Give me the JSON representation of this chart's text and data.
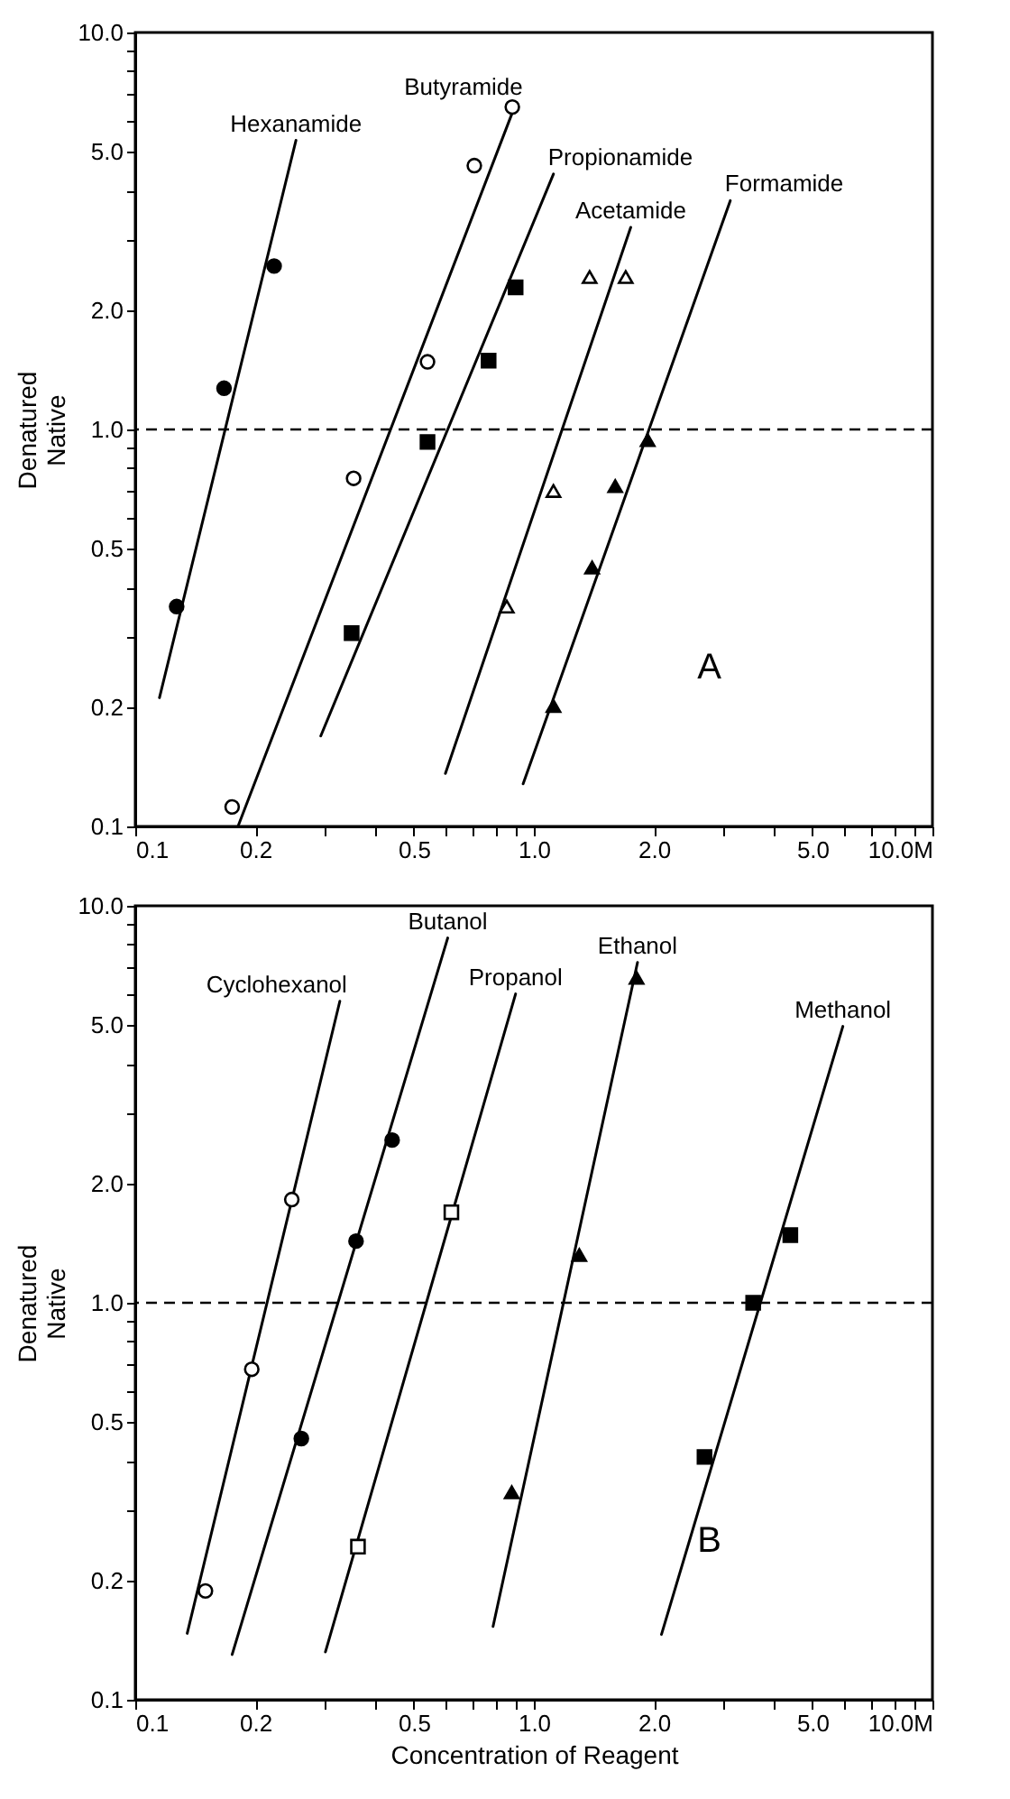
{
  "chart_data": [
    {
      "type": "scatter",
      "ylabel": "Denatured\nNative",
      "log": "xy",
      "xlim": [
        0.1,
        10
      ],
      "ylim": [
        0.1,
        10
      ],
      "xticks": [
        0.1,
        0.2,
        {
          "value": 0.3,
          "label": null
        },
        {
          "value": 0.4,
          "label": null
        },
        0.5,
        {
          "value": 0.6,
          "label": null
        },
        {
          "value": 0.7,
          "label": null
        },
        {
          "value": 0.8,
          "label": null
        },
        {
          "value": 0.9,
          "label": null
        },
        {
          "value": 1,
          "label": "1.0"
        },
        {
          "value": 2,
          "label": "2.0"
        },
        {
          "value": 3,
          "label": null
        },
        {
          "value": 4,
          "label": null
        },
        {
          "value": 5,
          "label": "5.0"
        },
        {
          "value": 6,
          "label": null
        },
        {
          "value": 7,
          "label": null
        },
        {
          "value": 8,
          "label": null
        },
        {
          "value": 9,
          "label": null
        },
        {
          "value": 10,
          "label": "10.0M"
        }
      ],
      "yticks": [
        0.1,
        0.2,
        {
          "value": 0.3,
          "label": null
        },
        {
          "value": 0.4,
          "label": null
        },
        0.5,
        {
          "value": 0.6,
          "label": null
        },
        {
          "value": 0.7,
          "label": null
        },
        {
          "value": 0.8,
          "label": null
        },
        {
          "value": 0.9,
          "label": null
        },
        {
          "value": 1,
          "label": "1.0"
        },
        {
          "value": 2,
          "label": "2.0"
        },
        {
          "value": 3,
          "label": null
        },
        {
          "value": 4,
          "label": null
        },
        {
          "value": 5,
          "label": "5.0"
        },
        {
          "value": 6,
          "label": null
        },
        {
          "value": 7,
          "label": null
        },
        {
          "value": 8,
          "label": null
        },
        {
          "value": 9,
          "label": null
        },
        {
          "value": 10,
          "label": "10.0"
        }
      ],
      "ref_lines": [
        {
          "axis": "y",
          "value": 1,
          "line_style": "dashed"
        }
      ],
      "annotations": [
        "A"
      ],
      "series": [
        {
          "name": "Hexanamide",
          "type": "line",
          "x": [
            0.115,
            0.253
          ],
          "values": [
            0.211,
            5.35
          ],
          "color": "#000000",
          "marker": "none"
        },
        {
          "x": [
            0.127,
            0.167,
            0.223
          ],
          "values": [
            0.358,
            1.27,
            2.58
          ],
          "color": "#000000",
          "marker": "circle"
        },
        {
          "name": "Butyramide",
          "type": "line",
          "x": [
            0.181,
            0.9
          ],
          "values": [
            0.1,
            6.6
          ],
          "color": "#000000",
          "marker": "none"
        },
        {
          "x": [
            0.175,
            0.353,
            0.541,
            0.709,
            0.883
          ],
          "values": [
            0.112,
            0.753,
            1.48,
            4.62,
            6.49
          ],
          "color": "#ffffff",
          "marker": "circle"
        },
        {
          "name": "Propionamide",
          "type": "line",
          "x": [
            0.292,
            1.12
          ],
          "values": [
            0.169,
            4.4
          ],
          "color": "#000000",
          "marker": "none"
        },
        {
          "x": [
            0.349,
            0.541,
            0.77,
            0.9
          ],
          "values": [
            0.307,
            0.93,
            1.49,
            2.28
          ],
          "color": "#000000",
          "marker": "square"
        },
        {
          "name": "Acetamide",
          "type": "line",
          "x": [
            0.6,
            1.75
          ],
          "values": [
            0.136,
            3.23
          ],
          "color": "#000000",
          "marker": "none"
        },
        {
          "x": [
            0.855,
            1.12,
            1.38,
            1.7
          ],
          "values": [
            0.358,
            0.7,
            2.42,
            2.42
          ],
          "color": "#ffffff",
          "marker": "triangle"
        },
        {
          "name": "Formamide",
          "type": "line",
          "x": [
            0.94,
            3.11
          ],
          "values": [
            0.128,
            3.77
          ],
          "color": "#000000",
          "marker": "none"
        },
        {
          "x": [
            1.12,
            1.4,
            1.6,
            1.93
          ],
          "values": [
            0.201,
            0.449,
            0.72,
            0.94
          ],
          "color": "#000000",
          "marker": "triangle"
        }
      ]
    },
    {
      "type": "scatter",
      "xlabel": "Concentration of Reagent",
      "ylabel": "Denatured\nNative",
      "log": "xy",
      "xlim": [
        0.1,
        10
      ],
      "ylim": [
        0.1,
        10
      ],
      "xticks": [
        0.1,
        0.2,
        {
          "value": 0.3,
          "label": null
        },
        {
          "value": 0.4,
          "label": null
        },
        0.5,
        {
          "value": 0.6,
          "label": null
        },
        {
          "value": 0.7,
          "label": null
        },
        {
          "value": 0.8,
          "label": null
        },
        {
          "value": 0.9,
          "label": null
        },
        {
          "value": 1,
          "label": "1.0"
        },
        {
          "value": 2,
          "label": "2.0"
        },
        {
          "value": 3,
          "label": null
        },
        {
          "value": 4,
          "label": null
        },
        {
          "value": 5,
          "label": "5.0"
        },
        {
          "value": 6,
          "label": null
        },
        {
          "value": 7,
          "label": null
        },
        {
          "value": 8,
          "label": null
        },
        {
          "value": 9,
          "label": null
        },
        {
          "value": 10,
          "label": "10.0M"
        }
      ],
      "yticks": [
        0.1,
        0.2,
        {
          "value": 0.3,
          "label": null
        },
        {
          "value": 0.4,
          "label": null
        },
        0.5,
        {
          "value": 0.6,
          "label": null
        },
        {
          "value": 0.7,
          "label": null
        },
        {
          "value": 0.8,
          "label": null
        },
        {
          "value": 0.9,
          "label": null
        },
        {
          "value": 1,
          "label": "1.0"
        },
        {
          "value": 2,
          "label": "2.0"
        },
        {
          "value": 3,
          "label": null
        },
        {
          "value": 4,
          "label": null
        },
        {
          "value": 5,
          "label": "5.0"
        },
        {
          "value": 6,
          "label": null
        },
        {
          "value": 7,
          "label": null
        },
        {
          "value": 8,
          "label": null
        },
        {
          "value": 9,
          "label": null
        },
        {
          "value": 10,
          "label": "10.0"
        }
      ],
      "ref_lines": [
        {
          "axis": "y",
          "value": 1,
          "line_style": "dashed"
        }
      ],
      "annotations": [
        "B"
      ],
      "series": [
        {
          "name": "Cyclohexanol",
          "type": "line",
          "x": [
            0.135,
            0.326
          ],
          "values": [
            0.147,
            5.75
          ],
          "color": "#000000",
          "marker": "none"
        },
        {
          "x": [
            0.15,
            0.196,
            0.247
          ],
          "values": [
            0.188,
            0.68,
            1.82
          ],
          "color": "#ffffff",
          "marker": "circle"
        },
        {
          "name": "Butanol",
          "type": "line",
          "x": [
            0.175,
            0.608
          ],
          "values": [
            0.13,
            8.3
          ],
          "color": "#000000",
          "marker": "none"
        },
        {
          "x": [
            0.261,
            0.358,
            0.441
          ],
          "values": [
            0.455,
            1.43,
            2.57
          ],
          "color": "#000000",
          "marker": "circle"
        },
        {
          "name": "Propanol",
          "type": "line",
          "x": [
            0.3,
            0.9
          ],
          "values": [
            0.132,
            6.0
          ],
          "color": "#000000",
          "marker": "none"
        },
        {
          "x": [
            0.362,
            0.621
          ],
          "values": [
            0.243,
            1.69
          ],
          "color": "#ffffff",
          "marker": "square"
        },
        {
          "name": "Ethanol",
          "type": "line",
          "x": [
            0.79,
            1.82
          ],
          "values": [
            0.153,
            7.2
          ],
          "color": "#000000",
          "marker": "none"
        },
        {
          "x": [
            0.88,
            1.3,
            1.81
          ],
          "values": [
            0.333,
            1.32,
            6.59
          ],
          "color": "#000000",
          "marker": "triangle"
        },
        {
          "name": "Methanol",
          "type": "line",
          "x": [
            2.09,
            5.96
          ],
          "values": [
            0.146,
            4.97
          ],
          "color": "#000000",
          "marker": "none"
        },
        {
          "x": [
            2.68,
            3.55,
            4.4
          ],
          "values": [
            0.409,
            1.0,
            1.48
          ],
          "color": "#000000",
          "marker": "square"
        }
      ]
    }
  ]
}
